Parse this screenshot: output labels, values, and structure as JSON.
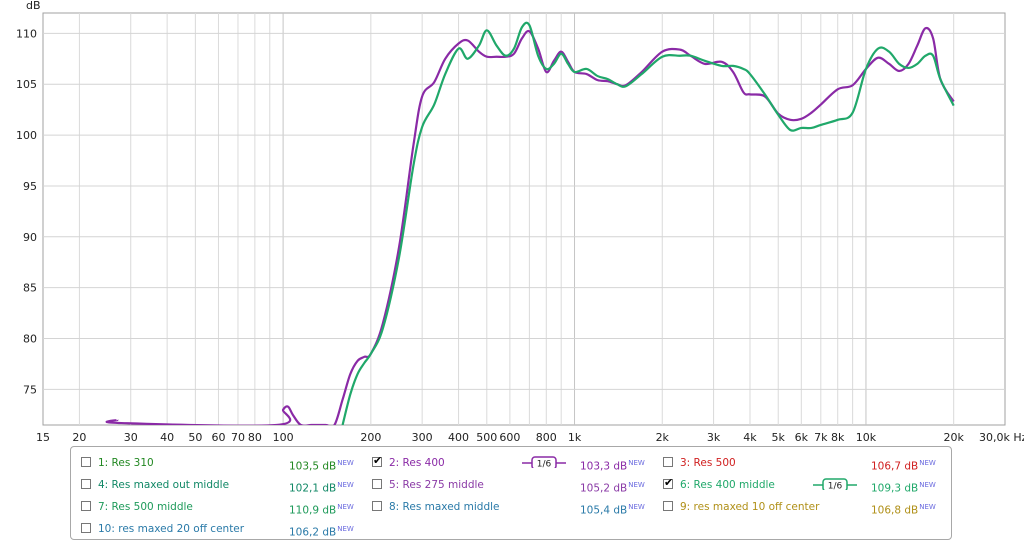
{
  "chart_data": {
    "type": "line",
    "title": "",
    "xlabel": "Hz",
    "ylabel": "dB",
    "x_scale": "log",
    "xlim": [
      15,
      30000
    ],
    "ylim": [
      71.5,
      112
    ],
    "grid": true,
    "x_ticks": [
      {
        "value": 15,
        "label": "15"
      },
      {
        "value": 20,
        "label": "20"
      },
      {
        "value": 30,
        "label": "30"
      },
      {
        "value": 40,
        "label": "40"
      },
      {
        "value": 50,
        "label": "50"
      },
      {
        "value": 60,
        "label": "60"
      },
      {
        "value": 70,
        "label": "70"
      },
      {
        "value": 80,
        "label": "80"
      },
      {
        "value": 100,
        "label": "100"
      },
      {
        "value": 200,
        "label": "200"
      },
      {
        "value": 300,
        "label": "300"
      },
      {
        "value": 400,
        "label": "400"
      },
      {
        "value": 500,
        "label": "500"
      },
      {
        "value": 600,
        "label": "600"
      },
      {
        "value": 800,
        "label": "800"
      },
      {
        "value": 1000,
        "label": "1k"
      },
      {
        "value": 2000,
        "label": "2k"
      },
      {
        "value": 3000,
        "label": "3k"
      },
      {
        "value": 4000,
        "label": "4k"
      },
      {
        "value": 5000,
        "label": "5k"
      },
      {
        "value": 6000,
        "label": "6k"
      },
      {
        "value": 7000,
        "label": "7k"
      },
      {
        "value": 8000,
        "label": "8k"
      },
      {
        "value": 10000,
        "label": "10k"
      },
      {
        "value": 20000,
        "label": "20k"
      },
      {
        "value": 30000,
        "label": "30,0k Hz"
      }
    ],
    "y_ticks": [
      75,
      80,
      85,
      90,
      95,
      100,
      105,
      110
    ],
    "series": [
      {
        "name": "2: Res 400",
        "color": "#8a2aa6",
        "x": [
          27,
          27.3,
          95,
          100,
          104,
          108,
          115,
          125,
          140,
          150,
          160,
          170,
          180,
          190,
          200,
          220,
          250,
          280,
          300,
          330,
          360,
          400,
          430,
          470,
          500,
          540,
          580,
          620,
          660,
          700,
          750,
          800,
          850,
          900,
          950,
          1000,
          1100,
          1200,
          1300,
          1400,
          1500,
          1700,
          2000,
          2300,
          2500,
          2800,
          3200,
          3500,
          3800,
          4000,
          4500,
          5000,
          5500,
          6000,
          6500,
          7000,
          8000,
          9000,
          10000,
          11000,
          12000,
          13000,
          14000,
          15000,
          16000,
          17000,
          18000,
          20000
        ],
        "y": [
          72.0,
          71.7,
          71.5,
          73.0,
          73.3,
          72.5,
          71.5,
          71.5,
          71.5,
          71.5,
          74.0,
          76.5,
          77.8,
          78.2,
          78.5,
          81.5,
          89,
          99,
          103.8,
          105.2,
          107.5,
          109.0,
          109.3,
          108.2,
          107.7,
          107.7,
          107.7,
          108.0,
          109.5,
          110.2,
          108.5,
          106.2,
          107.3,
          108.2,
          107.2,
          106.2,
          106.0,
          105.4,
          105.3,
          105.0,
          104.9,
          106.2,
          108.2,
          108.4,
          107.8,
          107.0,
          107.2,
          106.2,
          104.2,
          104.0,
          103.8,
          102.1,
          101.5,
          101.6,
          102.2,
          103.0,
          104.5,
          104.9,
          106.5,
          107.6,
          107.0,
          106.3,
          107.0,
          108.8,
          110.5,
          109.5,
          105.5,
          103.3
        ]
      },
      {
        "name": "6: Res 400 middle",
        "color": "#20a86a",
        "x": [
          160,
          170,
          180,
          190,
          200,
          220,
          250,
          280,
          300,
          330,
          360,
          400,
          430,
          470,
          500,
          540,
          580,
          620,
          660,
          700,
          750,
          800,
          850,
          900,
          950,
          1000,
          1100,
          1200,
          1300,
          1400,
          1500,
          1700,
          2000,
          2300,
          2500,
          2800,
          3200,
          3500,
          3800,
          4000,
          4500,
          5000,
          5500,
          6000,
          6500,
          7000,
          8000,
          9000,
          10000,
          11000,
          12000,
          13000,
          14000,
          15000,
          16000,
          17000,
          18000,
          20000
        ],
        "y": [
          71.5,
          74.5,
          76.5,
          77.6,
          78.5,
          81.0,
          88,
          97,
          100.8,
          103.0,
          106.0,
          108.5,
          107.5,
          108.8,
          110.3,
          108.8,
          107.8,
          108.5,
          110.6,
          110.8,
          107.8,
          106.5,
          107.0,
          108.0,
          107.0,
          106.2,
          106.5,
          105.8,
          105.5,
          105.0,
          104.8,
          106.0,
          107.7,
          107.8,
          107.8,
          107.3,
          106.8,
          106.8,
          106.5,
          106.0,
          104.0,
          102.0,
          100.5,
          100.7,
          100.7,
          101.0,
          101.5,
          102.2,
          106.5,
          108.5,
          108.2,
          107.0,
          106.6,
          107.0,
          107.8,
          107.8,
          105.5,
          102.9
        ]
      }
    ],
    "legend": {
      "placement": "bottom",
      "entries": [
        {
          "name": "1: Res 310",
          "level": "103,5 dB",
          "color": "#228822",
          "checked": false
        },
        {
          "name": "2: Res 400",
          "level": "103,3 dB",
          "color": "#8a2aa6",
          "checked": true,
          "smoothing": "1/6"
        },
        {
          "name": "3: Res 500",
          "level": "106,7 dB",
          "color": "#d02020",
          "checked": false
        },
        {
          "name": "4: Res maxed out middle",
          "level": "102,1 dB",
          "color": "#118866",
          "checked": false
        },
        {
          "name": "5: Res 275 middle",
          "level": "105,2 dB",
          "color": "#8a3aa6",
          "checked": false
        },
        {
          "name": "6: Res 400 middle",
          "level": "109,3 dB",
          "color": "#20a86a",
          "checked": true,
          "smoothing": "1/6"
        },
        {
          "name": "7: Res 500 middle",
          "level": "110,9 dB",
          "color": "#1e9a5a",
          "checked": false
        },
        {
          "name": "8: Res maxed middle",
          "level": "105,4 dB",
          "color": "#2a7aa8",
          "checked": false
        },
        {
          "name": "9: res maxed 10 off center",
          "level": "106,8 dB",
          "color": "#b09018",
          "checked": false
        },
        {
          "name": "10: res maxed 20 off center",
          "level": "106,2 dB",
          "color": "#2a7aa8",
          "checked": false
        }
      ],
      "new_tag": "NEW"
    }
  }
}
